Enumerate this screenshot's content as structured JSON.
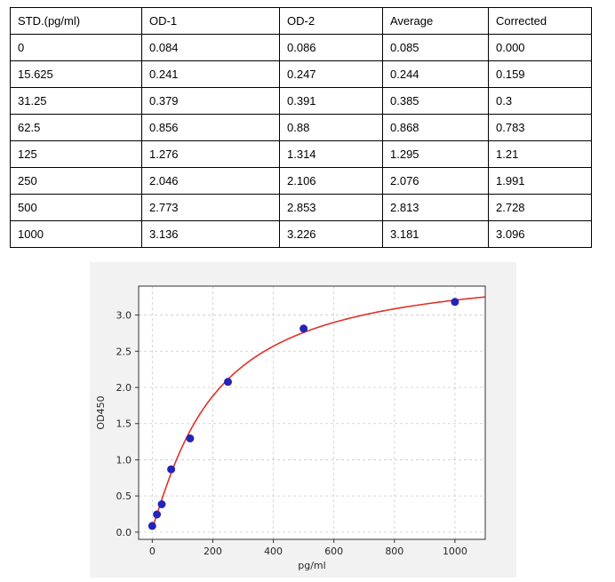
{
  "table": {
    "headers": [
      "STD.(pg/ml)",
      "OD-1",
      "OD-2",
      "Average",
      "Corrected"
    ],
    "rows": [
      [
        "0",
        "0.084",
        "0.086",
        "0.085",
        "0.000"
      ],
      [
        "15.625",
        "0.241",
        "0.247",
        "0.244",
        "0.159"
      ],
      [
        "31.25",
        "0.379",
        "0.391",
        "0.385",
        "0.3"
      ],
      [
        "62.5",
        "0.856",
        "0.88",
        "0.868",
        "0.783"
      ],
      [
        "125",
        "1.276",
        "1.314",
        "1.295",
        "1.21"
      ],
      [
        "250",
        "2.046",
        "2.106",
        "2.076",
        "1.991"
      ],
      [
        "500",
        "2.773",
        "2.853",
        "2.813",
        "2.728"
      ],
      [
        "1000",
        "3.136",
        "3.226",
        "3.181",
        "3.096"
      ]
    ]
  },
  "chart_data": {
    "type": "scatter",
    "title": "",
    "xlabel": "pg/ml",
    "ylabel": "OD450",
    "x": [
      0,
      15.625,
      31.25,
      62.5,
      125,
      250,
      500,
      1000
    ],
    "y": [
      0.085,
      0.244,
      0.385,
      0.868,
      1.295,
      2.076,
      2.813,
      3.181
    ],
    "xticks": [
      0,
      200,
      400,
      600,
      800,
      1000
    ],
    "xtick_labels": [
      "0",
      "200",
      "400",
      "600",
      "800",
      "1000"
    ],
    "yticks": [
      0,
      0.5,
      1,
      1.5,
      2,
      2.5,
      3
    ],
    "ytick_labels": [
      "0.0",
      "0.5",
      "1.0",
      "1.5",
      "2.0",
      "2.5",
      "3.0"
    ],
    "xlim": [
      -45,
      1100
    ],
    "ylim": [
      -0.1,
      3.4
    ],
    "grid": true,
    "legend": false,
    "fit_curve": {
      "type": "4PL",
      "a": 0.06,
      "b": 1.15,
      "c": 200,
      "d": 3.7
    },
    "colors": {
      "point": "#2424b8",
      "curve": "#e03127",
      "grid": "#cccccc",
      "figure_bg": "#f2f2f2",
      "plot_bg": "#ffffff",
      "spine": "#333333",
      "text": "#262626"
    }
  }
}
